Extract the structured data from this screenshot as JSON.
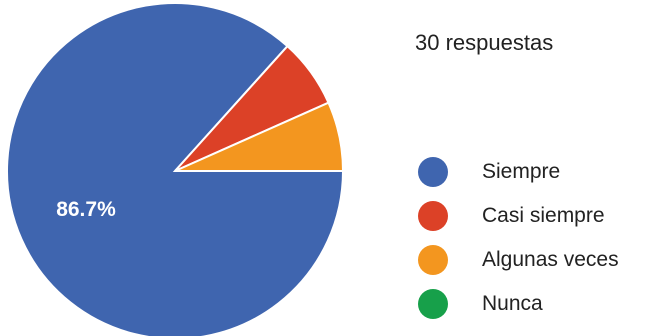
{
  "response_count": "30 respuestas",
  "chart_data": {
    "type": "pie",
    "title": "",
    "categories": [
      "Siempre",
      "Casi siempre",
      "Algunas veces",
      "Nunca"
    ],
    "values": [
      26,
      2,
      2,
      0
    ],
    "percent_labels": [
      "86.7%",
      "",
      "",
      ""
    ],
    "colors": [
      "#3f65af",
      "#dc4127",
      "#f3961f",
      "#17a04a"
    ],
    "legend_position": "right",
    "start_angle": "clockwise from top, first slice ending at 3 o'clock"
  }
}
